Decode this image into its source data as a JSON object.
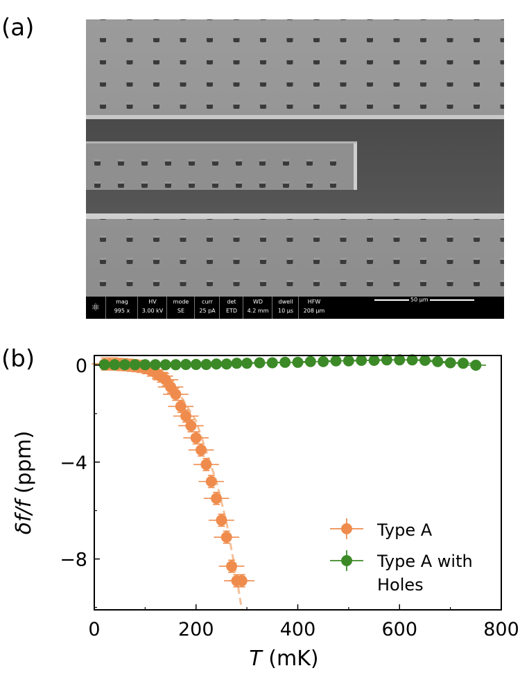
{
  "panels": {
    "a": "(a)",
    "b": "(b)"
  },
  "sem_info": {
    "headers": [
      "mag",
      "HV",
      "mode",
      "curr",
      "det",
      "WD",
      "dwell",
      "HFW"
    ],
    "values": [
      "995 x",
      "3.00 kV",
      "SE",
      "25 pA",
      "ETD",
      "4.2 mm",
      "10 µs",
      "208 µm"
    ],
    "scale_bar": "50 µm"
  },
  "chart_data": {
    "type": "scatter",
    "xlabel_italic": "T",
    "xlabel_unit": "(mK)",
    "ylabel_italic": "δf/f",
    "ylabel_unit": "(ppm)",
    "xlim": [
      0,
      800
    ],
    "ylim": [
      -10.1,
      0.4
    ],
    "x_ticks": [
      0,
      200,
      400,
      600,
      800
    ],
    "y_ticks": [
      0,
      -4,
      -8
    ],
    "tick_labels_x": [
      "0",
      "200",
      "400",
      "600",
      "800"
    ],
    "tick_labels_y": [
      "0",
      "−4",
      "−8"
    ],
    "legend_position": "lower-right",
    "series": [
      {
        "name": "Type A",
        "color": "#ef8c4d",
        "x": [
          20,
          30,
          40,
          50,
          60,
          70,
          80,
          90,
          100,
          110,
          120,
          130,
          140,
          150,
          160,
          170,
          180,
          190,
          200,
          210,
          220,
          230,
          240,
          250,
          260,
          270,
          280,
          290
        ],
        "y": [
          0.05,
          0.05,
          0.05,
          0.03,
          0.02,
          0,
          -0.02,
          -0.05,
          -0.1,
          -0.2,
          -0.3,
          -0.45,
          -0.6,
          -0.9,
          -1.2,
          -1.7,
          -2.1,
          -2.5,
          -3.0,
          -3.5,
          -4.1,
          -4.8,
          -5.5,
          -6.4,
          -7.1,
          -8.3,
          -8.9,
          -8.9
        ],
        "xerr": 25,
        "yerr": 0.25
      },
      {
        "name": "Type A with Holes",
        "color": "#3c8a27",
        "x": [
          20,
          40,
          60,
          80,
          100,
          120,
          140,
          160,
          180,
          200,
          220,
          240,
          260,
          280,
          300,
          325,
          350,
          375,
          400,
          425,
          450,
          475,
          500,
          525,
          550,
          575,
          600,
          625,
          650,
          675,
          700,
          725,
          750
        ],
        "y": [
          0.02,
          0.02,
          0.02,
          0.02,
          0.02,
          0.02,
          0.02,
          0.02,
          0.03,
          0.03,
          0.03,
          0.05,
          0.05,
          0.08,
          0.08,
          0.1,
          0.1,
          0.12,
          0.12,
          0.15,
          0.15,
          0.18,
          0.18,
          0.2,
          0.2,
          0.22,
          0.22,
          0.22,
          0.2,
          0.15,
          0.1,
          0.08,
          0.0
        ],
        "xerr": 20,
        "yerr": 0.05
      }
    ],
    "fit_line": {
      "color": "#f5bf97",
      "x": [
        0,
        50,
        100,
        150,
        200,
        240,
        260,
        280,
        290
      ],
      "y": [
        0.05,
        0.03,
        -0.08,
        -0.6,
        -2.3,
        -4.8,
        -6.5,
        -8.8,
        -10.1
      ]
    }
  }
}
